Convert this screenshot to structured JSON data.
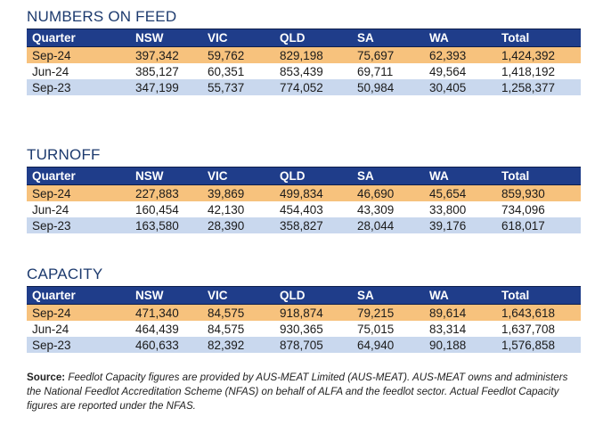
{
  "sections": [
    {
      "title": "NUMBERS ON FEED",
      "headers": [
        "Quarter",
        "NSW",
        "VIC",
        "QLD",
        "SA",
        "WA",
        "Total"
      ],
      "rows": [
        [
          "Sep-24",
          "397,342",
          "59,762",
          "829,198",
          "75,697",
          "62,393",
          "1,424,392"
        ],
        [
          "Jun-24",
          "385,127",
          "60,351",
          "853,439",
          "69,711",
          "49,564",
          "1,418,192"
        ],
        [
          "Sep-23",
          "347,199",
          "55,737",
          "774,052",
          "50,984",
          "30,405",
          "1,258,377"
        ]
      ]
    },
    {
      "title": "TURNOFF",
      "headers": [
        "Quarter",
        "NSW",
        "VIC",
        "QLD",
        "SA",
        "WA",
        "Total"
      ],
      "rows": [
        [
          "Sep-24",
          "227,883",
          "39,869",
          "499,834",
          "46,690",
          "45,654",
          "859,930"
        ],
        [
          "Jun-24",
          "160,454",
          "42,130",
          "454,403",
          "43,309",
          "33,800",
          "734,096"
        ],
        [
          "Sep-23",
          "163,580",
          "28,390",
          "358,827",
          "28,044",
          "39,176",
          "618,017"
        ]
      ]
    },
    {
      "title": "CAPACITY",
      "headers": [
        "Quarter",
        "NSW",
        "VIC",
        "QLD",
        "SA",
        "WA",
        "Total"
      ],
      "rows": [
        [
          "Sep-24",
          "471,340",
          "84,575",
          "918,874",
          "79,215",
          "89,614",
          "1,643,618"
        ],
        [
          "Jun-24",
          "464,439",
          "84,575",
          "930,365",
          "75,015",
          "83,314",
          "1,637,708"
        ],
        [
          "Sep-23",
          "460,633",
          "82,392",
          "878,705",
          "64,940",
          "90,188",
          "1,576,858"
        ]
      ]
    }
  ],
  "source": {
    "label": "Source:",
    "text": "Feedlot Capacity figures are provided by AUS-MEAT Limited (AUS-MEAT). AUS-MEAT owns and administers the National Feedlot Accreditation Scheme (NFAS) on behalf of ALFA and the feedlot sector. Actual Feedlot Capacity figures are reported under the NFAS."
  },
  "colors": {
    "header_bg": "#1f3d8a",
    "title_text": "#1c3a6e",
    "row_highlight": "#f7c27d",
    "row_plain": "#ffffff",
    "row_light_blue": "#c9d8ee"
  }
}
